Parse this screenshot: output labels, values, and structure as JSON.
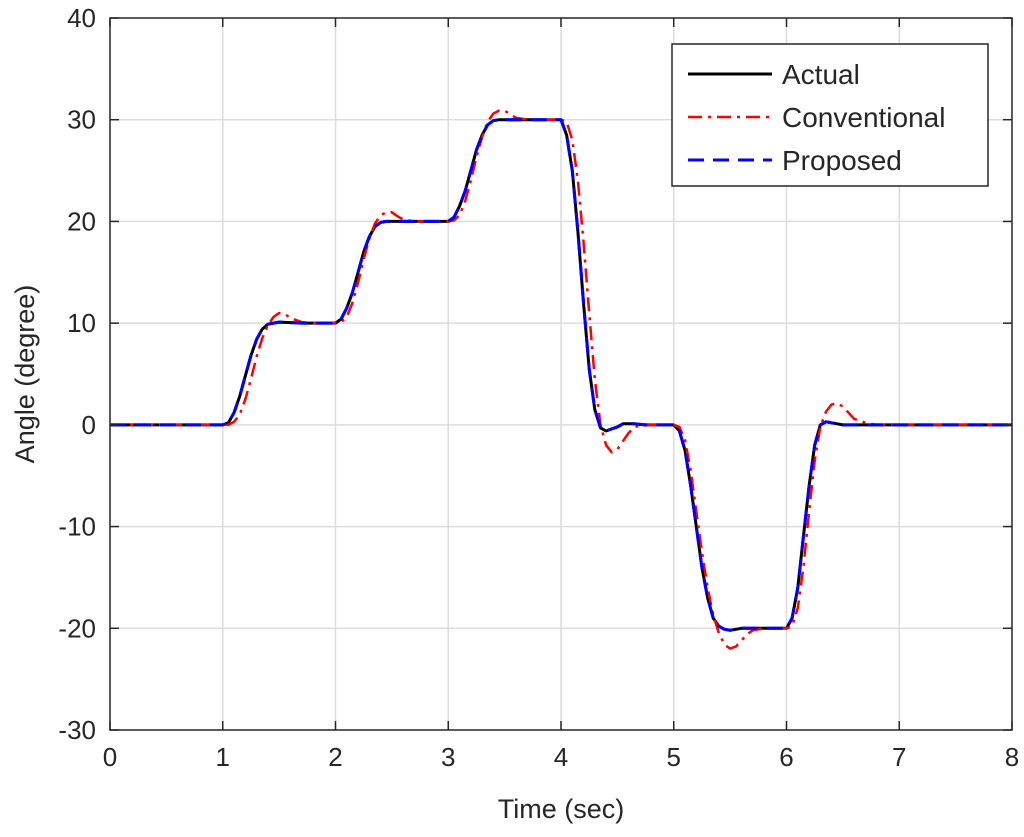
{
  "chart_data": {
    "type": "line",
    "xlabel": "Time (sec)",
    "ylabel": "Angle (degree)",
    "xlim": [
      0,
      8
    ],
    "ylim": [
      -30,
      40
    ],
    "xticks": [
      0,
      1,
      2,
      3,
      4,
      5,
      6,
      7,
      8
    ],
    "yticks": [
      -30,
      -20,
      -10,
      0,
      10,
      20,
      30,
      40
    ],
    "grid": true,
    "legend_position": "top-right",
    "series": [
      {
        "name": "Actual",
        "color": "#000000",
        "dash": "solid",
        "x": [
          0,
          1.0,
          1.05,
          1.1,
          1.15,
          1.2,
          1.25,
          1.3,
          1.35,
          1.4,
          1.45,
          1.5,
          1.6,
          1.7,
          1.8,
          1.9,
          2.0,
          2.05,
          2.1,
          2.15,
          2.2,
          2.25,
          2.3,
          2.35,
          2.4,
          2.45,
          2.5,
          2.6,
          2.7,
          2.8,
          2.9,
          3.0,
          3.05,
          3.1,
          3.15,
          3.2,
          3.25,
          3.3,
          3.35,
          3.4,
          3.45,
          3.5,
          3.6,
          3.7,
          3.8,
          3.9,
          4.0,
          4.05,
          4.1,
          4.15,
          4.2,
          4.25,
          4.3,
          4.35,
          4.4,
          4.45,
          4.5,
          4.55,
          4.65,
          4.75,
          4.85,
          5.0,
          5.05,
          5.1,
          5.15,
          5.2,
          5.25,
          5.3,
          5.35,
          5.4,
          5.45,
          5.5,
          5.6,
          5.7,
          5.8,
          5.9,
          6.0,
          6.05,
          6.1,
          6.15,
          6.2,
          6.25,
          6.3,
          6.35,
          6.4,
          6.45,
          6.5,
          6.6,
          6.7,
          6.8,
          7.0,
          8.0
        ],
        "y": [
          0,
          0,
          0.2,
          1.2,
          2.8,
          4.8,
          6.8,
          8.4,
          9.4,
          9.9,
          10.0,
          10.1,
          10.05,
          10.0,
          10.0,
          10.0,
          10.0,
          10.4,
          11.5,
          13.0,
          15.0,
          17.0,
          18.5,
          19.5,
          19.9,
          20.0,
          20.0,
          20.0,
          20.0,
          20.0,
          20.0,
          20.0,
          20.4,
          21.5,
          23.0,
          25.0,
          27.0,
          28.5,
          29.5,
          29.9,
          30.0,
          30.0,
          30.0,
          30.0,
          30.0,
          30.0,
          30.0,
          28.5,
          25.0,
          19.0,
          12.0,
          5.5,
          1.5,
          -0.3,
          -0.6,
          -0.4,
          -0.2,
          0.1,
          0.1,
          0.0,
          0.0,
          0.0,
          -0.6,
          -2.5,
          -6.0,
          -10.0,
          -14.0,
          -17.0,
          -19.0,
          -19.8,
          -20.1,
          -20.2,
          -20.0,
          -20.0,
          -20.0,
          -20.0,
          -20.0,
          -19.0,
          -16.0,
          -11.0,
          -6.0,
          -2.0,
          0.0,
          0.3,
          0.2,
          0.1,
          0.0,
          0.0,
          0.0,
          0.0,
          0.0,
          0.0
        ]
      },
      {
        "name": "Conventional",
        "color": "#ff0000",
        "dash": "dashdot",
        "x": [
          0,
          1.0,
          1.05,
          1.1,
          1.15,
          1.2,
          1.25,
          1.3,
          1.35,
          1.4,
          1.45,
          1.5,
          1.55,
          1.6,
          1.7,
          1.8,
          1.9,
          2.0,
          2.05,
          2.1,
          2.15,
          2.2,
          2.25,
          2.3,
          2.35,
          2.4,
          2.45,
          2.5,
          2.55,
          2.6,
          2.7,
          2.8,
          2.9,
          3.0,
          3.05,
          3.1,
          3.15,
          3.2,
          3.25,
          3.3,
          3.35,
          3.4,
          3.45,
          3.5,
          3.55,
          3.6,
          3.7,
          3.8,
          3.9,
          4.0,
          4.05,
          4.1,
          4.15,
          4.2,
          4.25,
          4.3,
          4.35,
          4.4,
          4.45,
          4.5,
          4.55,
          4.6,
          4.65,
          4.7,
          4.8,
          4.9,
          5.0,
          5.05,
          5.1,
          5.15,
          5.2,
          5.25,
          5.3,
          5.35,
          5.4,
          5.45,
          5.5,
          5.55,
          5.6,
          5.65,
          5.7,
          5.8,
          5.9,
          6.0,
          6.05,
          6.1,
          6.15,
          6.2,
          6.25,
          6.3,
          6.35,
          6.4,
          6.45,
          6.5,
          6.55,
          6.6,
          6.7,
          6.8,
          7.0,
          8.0
        ],
        "y": [
          0,
          0,
          0.0,
          0.3,
          1.0,
          2.5,
          4.5,
          6.7,
          8.5,
          9.8,
          10.6,
          11.0,
          10.9,
          10.5,
          10.1,
          10.0,
          10.0,
          10.0,
          10.1,
          10.6,
          12.0,
          14.0,
          16.3,
          18.3,
          19.8,
          20.6,
          20.9,
          20.9,
          20.5,
          20.2,
          20.0,
          20.0,
          20.0,
          20.0,
          20.1,
          20.6,
          22.0,
          24.0,
          26.3,
          28.3,
          29.8,
          30.6,
          30.9,
          30.9,
          30.5,
          30.2,
          30.0,
          30.0,
          30.0,
          30.0,
          29.8,
          28.0,
          24.0,
          18.0,
          11.0,
          4.5,
          0.0,
          -2.0,
          -2.7,
          -2.4,
          -1.6,
          -0.8,
          -0.2,
          -0.1,
          0.0,
          0.0,
          0.0,
          -0.2,
          -1.5,
          -4.5,
          -8.5,
          -12.5,
          -16.0,
          -18.7,
          -20.5,
          -21.6,
          -22.0,
          -21.8,
          -21.2,
          -20.6,
          -20.2,
          -20.0,
          -20.0,
          -20.0,
          -19.8,
          -18.0,
          -14.0,
          -8.5,
          -3.5,
          -0.2,
          1.3,
          2.0,
          2.1,
          1.8,
          1.2,
          0.6,
          0.2,
          0.0,
          0.0,
          0.0
        ]
      },
      {
        "name": "Proposed",
        "color": "#0000ff",
        "dash": "dashed",
        "x": [
          0,
          1.0,
          1.05,
          1.1,
          1.15,
          1.2,
          1.25,
          1.3,
          1.35,
          1.4,
          1.45,
          1.5,
          1.6,
          1.7,
          1.8,
          1.9,
          2.0,
          2.05,
          2.1,
          2.15,
          2.2,
          2.25,
          2.3,
          2.35,
          2.4,
          2.45,
          2.5,
          2.6,
          2.7,
          2.8,
          2.9,
          3.0,
          3.05,
          3.1,
          3.15,
          3.2,
          3.25,
          3.3,
          3.35,
          3.4,
          3.45,
          3.5,
          3.6,
          3.7,
          3.8,
          3.9,
          4.0,
          4.05,
          4.1,
          4.15,
          4.2,
          4.25,
          4.3,
          4.35,
          4.4,
          4.45,
          4.5,
          4.55,
          4.65,
          4.75,
          4.85,
          5.0,
          5.05,
          5.1,
          5.15,
          5.2,
          5.25,
          5.3,
          5.35,
          5.4,
          5.45,
          5.5,
          5.6,
          5.7,
          5.8,
          5.9,
          6.0,
          6.05,
          6.1,
          6.15,
          6.2,
          6.25,
          6.3,
          6.35,
          6.4,
          6.45,
          6.5,
          6.6,
          6.7,
          6.8,
          7.0,
          8.0
        ],
        "y": [
          0,
          0,
          0.2,
          1.2,
          2.8,
          4.8,
          6.8,
          8.4,
          9.4,
          9.9,
          10.0,
          10.1,
          10.05,
          10.0,
          10.0,
          10.0,
          10.0,
          10.4,
          11.5,
          13.0,
          15.0,
          17.0,
          18.5,
          19.5,
          19.9,
          20.0,
          20.0,
          20.0,
          20.0,
          20.0,
          20.0,
          20.0,
          20.4,
          21.5,
          23.0,
          25.0,
          27.0,
          28.5,
          29.5,
          29.9,
          30.0,
          30.0,
          30.0,
          30.0,
          30.0,
          30.0,
          30.0,
          28.5,
          25.0,
          19.0,
          12.0,
          5.5,
          1.5,
          -0.3,
          -0.6,
          -0.4,
          -0.2,
          0.1,
          0.1,
          0.0,
          0.0,
          0.0,
          -0.6,
          -2.5,
          -6.0,
          -10.0,
          -14.0,
          -17.0,
          -19.0,
          -19.8,
          -20.1,
          -20.2,
          -20.0,
          -20.0,
          -20.0,
          -20.0,
          -20.0,
          -19.0,
          -16.0,
          -11.0,
          -6.0,
          -2.0,
          0.0,
          0.3,
          0.2,
          0.1,
          0.0,
          0.0,
          0.0,
          0.0,
          0.0,
          0.0
        ]
      }
    ]
  }
}
